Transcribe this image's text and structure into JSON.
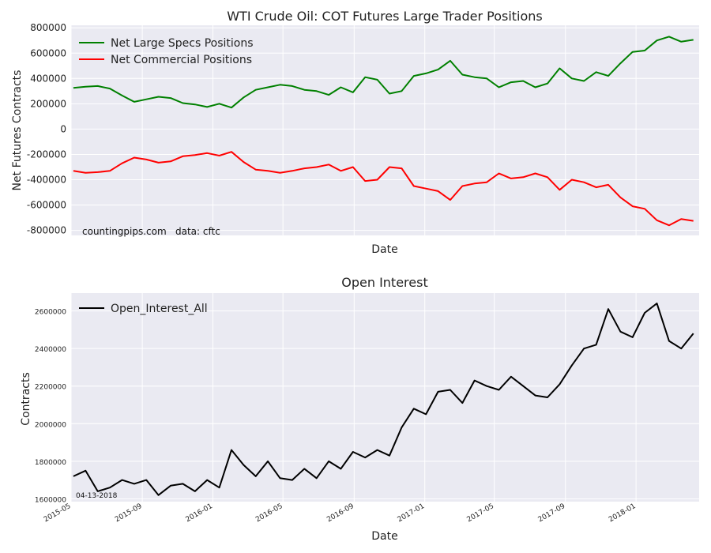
{
  "chart_data": [
    {
      "type": "line",
      "title": "WTI Crude Oil: COT Futures Large Trader Positions",
      "xlabel": "Date",
      "ylabel": "Net Futures Contracts",
      "ylim": [
        -840000,
        820000
      ],
      "yticks": [
        800000,
        600000,
        400000,
        200000,
        0,
        -200000,
        -400000,
        -600000,
        -800000
      ],
      "ytick_labels": [
        "800000",
        "600000",
        "400000",
        "200000",
        "0",
        "-200000",
        "-400000",
        "-600000",
        "-800000"
      ],
      "grid": true,
      "legend": "upper left",
      "annotations": [
        "countingpips.com",
        "data: cftc"
      ],
      "series": [
        {
          "name": "Net Large Specs Positions",
          "color": "#008000",
          "x": [
            "2015-05-05",
            "2015-05-26",
            "2015-06-16",
            "2015-07-07",
            "2015-07-28",
            "2015-08-18",
            "2015-09-08",
            "2015-09-29",
            "2015-10-20",
            "2015-11-10",
            "2015-12-01",
            "2015-12-22",
            "2016-01-12",
            "2016-02-02",
            "2016-02-23",
            "2016-03-15",
            "2016-04-05",
            "2016-04-26",
            "2016-05-17",
            "2016-06-07",
            "2016-06-28",
            "2016-07-19",
            "2016-08-09",
            "2016-08-30",
            "2016-09-20",
            "2016-10-11",
            "2016-11-01",
            "2016-11-22",
            "2016-12-13",
            "2017-01-03",
            "2017-01-24",
            "2017-02-14",
            "2017-03-07",
            "2017-03-28",
            "2017-04-18",
            "2017-05-09",
            "2017-05-30",
            "2017-06-20",
            "2017-07-11",
            "2017-08-01",
            "2017-08-22",
            "2017-09-12",
            "2017-10-03",
            "2017-10-24",
            "2017-11-14",
            "2017-12-05",
            "2017-12-26",
            "2018-01-16",
            "2018-02-06",
            "2018-02-27",
            "2018-03-20",
            "2018-04-10"
          ],
          "values": [
            325000,
            335000,
            340000,
            320000,
            265000,
            215000,
            235000,
            255000,
            245000,
            205000,
            195000,
            175000,
            200000,
            170000,
            250000,
            310000,
            330000,
            350000,
            340000,
            310000,
            300000,
            270000,
            330000,
            290000,
            410000,
            390000,
            280000,
            300000,
            420000,
            440000,
            470000,
            540000,
            430000,
            410000,
            400000,
            330000,
            370000,
            380000,
            330000,
            360000,
            480000,
            400000,
            380000,
            450000,
            420000,
            520000,
            610000,
            620000,
            700000,
            730000,
            690000,
            705000
          ]
        },
        {
          "name": "Net Commercial Positions",
          "color": "#ff0000",
          "x": [
            "2015-05-05",
            "2015-05-26",
            "2015-06-16",
            "2015-07-07",
            "2015-07-28",
            "2015-08-18",
            "2015-09-08",
            "2015-09-29",
            "2015-10-20",
            "2015-11-10",
            "2015-12-01",
            "2015-12-22",
            "2016-01-12",
            "2016-02-02",
            "2016-02-23",
            "2016-03-15",
            "2016-04-05",
            "2016-04-26",
            "2016-05-17",
            "2016-06-07",
            "2016-06-28",
            "2016-07-19",
            "2016-08-09",
            "2016-08-30",
            "2016-09-20",
            "2016-10-11",
            "2016-11-01",
            "2016-11-22",
            "2016-12-13",
            "2017-01-03",
            "2017-01-24",
            "2017-02-14",
            "2017-03-07",
            "2017-03-28",
            "2017-04-18",
            "2017-05-09",
            "2017-05-30",
            "2017-06-20",
            "2017-07-11",
            "2017-08-01",
            "2017-08-22",
            "2017-09-12",
            "2017-10-03",
            "2017-10-24",
            "2017-11-14",
            "2017-12-05",
            "2017-12-26",
            "2018-01-16",
            "2018-02-06",
            "2018-02-27",
            "2018-03-20",
            "2018-04-10"
          ],
          "values": [
            -330000,
            -345000,
            -340000,
            -330000,
            -270000,
            -225000,
            -240000,
            -265000,
            -255000,
            -215000,
            -205000,
            -190000,
            -210000,
            -180000,
            -260000,
            -320000,
            -330000,
            -345000,
            -330000,
            -310000,
            -300000,
            -280000,
            -330000,
            -300000,
            -410000,
            -400000,
            -300000,
            -310000,
            -450000,
            -470000,
            -490000,
            -560000,
            -450000,
            -430000,
            -420000,
            -350000,
            -390000,
            -380000,
            -350000,
            -380000,
            -480000,
            -400000,
            -420000,
            -460000,
            -440000,
            -540000,
            -610000,
            -630000,
            -720000,
            -760000,
            -710000,
            -725000
          ]
        }
      ]
    },
    {
      "type": "line",
      "title": "Open Interest",
      "xlabel": "Date",
      "ylabel": "Contracts",
      "ylim": [
        1585000,
        2695000
      ],
      "yticks": [
        2600000,
        2400000,
        2200000,
        2000000,
        1800000,
        1600000
      ],
      "ytick_labels": [
        "2600000",
        "2400000",
        "2200000",
        "2000000",
        "1800000",
        "1600000"
      ],
      "xticks": [
        "2015-05-01",
        "2015-09-01",
        "2016-01-01",
        "2016-05-01",
        "2016-09-01",
        "2017-01-01",
        "2017-05-01",
        "2017-09-01",
        "2018-01-01"
      ],
      "xtick_labels": [
        "2015-05",
        "2015-09",
        "2016-01",
        "2016-05",
        "2016-09",
        "2017-01",
        "2017-05",
        "2017-09",
        "2018-01"
      ],
      "grid": true,
      "legend": "upper left",
      "annotations": [
        "04-13-2018"
      ],
      "series": [
        {
          "name": "Open_Interest_All",
          "color": "#000000",
          "x": [
            "2015-05-05",
            "2015-05-26",
            "2015-06-16",
            "2015-07-07",
            "2015-07-28",
            "2015-08-18",
            "2015-09-08",
            "2015-09-29",
            "2015-10-20",
            "2015-11-10",
            "2015-12-01",
            "2015-12-22",
            "2016-01-12",
            "2016-02-02",
            "2016-02-23",
            "2016-03-15",
            "2016-04-05",
            "2016-04-26",
            "2016-05-17",
            "2016-06-07",
            "2016-06-28",
            "2016-07-19",
            "2016-08-09",
            "2016-08-30",
            "2016-09-20",
            "2016-10-11",
            "2016-11-01",
            "2016-11-22",
            "2016-12-13",
            "2017-01-03",
            "2017-01-24",
            "2017-02-14",
            "2017-03-07",
            "2017-03-28",
            "2017-04-18",
            "2017-05-09",
            "2017-05-30",
            "2017-06-20",
            "2017-07-11",
            "2017-08-01",
            "2017-08-22",
            "2017-09-12",
            "2017-10-03",
            "2017-10-24",
            "2017-11-14",
            "2017-12-05",
            "2017-12-26",
            "2018-01-16",
            "2018-02-06",
            "2018-02-27",
            "2018-03-20",
            "2018-04-10"
          ],
          "values": [
            1720000,
            1750000,
            1640000,
            1660000,
            1700000,
            1680000,
            1700000,
            1620000,
            1670000,
            1680000,
            1640000,
            1700000,
            1660000,
            1860000,
            1780000,
            1720000,
            1800000,
            1710000,
            1700000,
            1760000,
            1710000,
            1800000,
            1760000,
            1850000,
            1820000,
            1860000,
            1830000,
            1980000,
            2080000,
            2050000,
            2170000,
            2180000,
            2110000,
            2230000,
            2200000,
            2180000,
            2250000,
            2200000,
            2150000,
            2140000,
            2210000,
            2310000,
            2400000,
            2420000,
            2610000,
            2490000,
            2460000,
            2590000,
            2640000,
            2440000,
            2400000,
            2480000
          ]
        }
      ]
    }
  ]
}
